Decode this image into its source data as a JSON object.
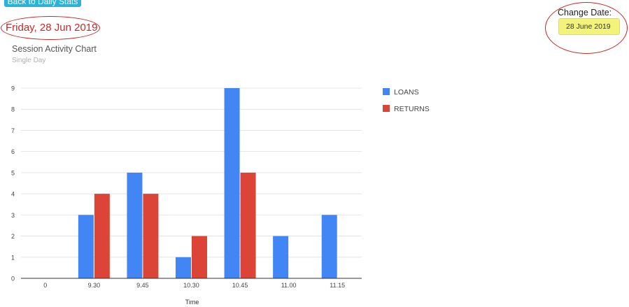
{
  "header": {
    "back_button_label": "Back to Daily Stats",
    "day_title": "Friday, 28 Jun 2019",
    "change_date_label": "Change Date:",
    "date_value": "28 June 2019"
  },
  "colors": {
    "loans": "#4285f4",
    "returns": "#db4437",
    "annotation": "#c62828",
    "date_field_bg": "#f3f37a",
    "button_bg": "#2ab3d6"
  },
  "chart_data": {
    "type": "bar",
    "title": "Session Activity Chart",
    "subtitle": "Single Day",
    "xlabel": "Time",
    "ylabel": "",
    "categories": [
      "0",
      "9.30",
      "9.45",
      "10.30",
      "10.45",
      "11.00",
      "11.15"
    ],
    "series": [
      {
        "name": "LOANS",
        "values": [
          0,
          3,
          5,
          1,
          9,
          2,
          3
        ]
      },
      {
        "name": "RETURNS",
        "values": [
          0,
          4,
          4,
          2,
          5,
          0,
          0
        ]
      }
    ],
    "ylim": [
      0,
      9
    ],
    "yticks": [
      0,
      1,
      2,
      3,
      4,
      5,
      6,
      7,
      8,
      9
    ],
    "grid": true,
    "legend": "right"
  }
}
